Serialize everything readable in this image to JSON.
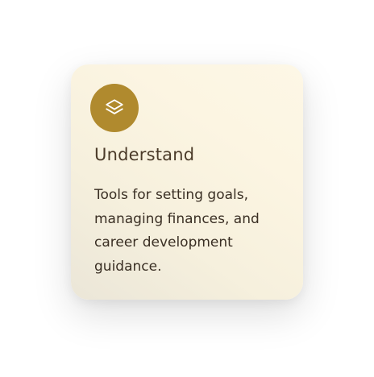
{
  "card": {
    "icon": "layers-icon",
    "accent_color": "#b08a2e",
    "title": "Understand",
    "description": "Tools for setting goals, managing finances, and career development guidance."
  }
}
